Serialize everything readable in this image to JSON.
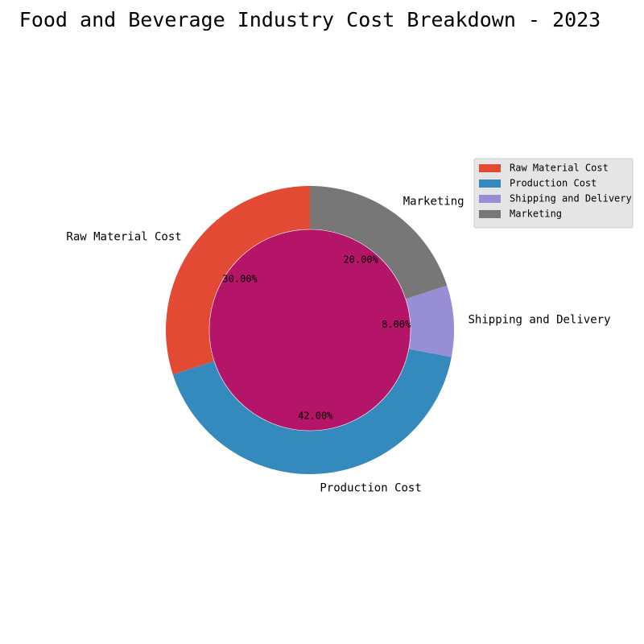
{
  "chart_data": {
    "type": "pie",
    "style": "donut",
    "title": "Food and Beverage Industry Cost Breakdown - 2023",
    "start_angle_deg": 90,
    "direction": "counterclockwise",
    "legend_position": "top-right",
    "center_color": "#b41569",
    "slices": [
      {
        "label": "Raw Material Cost",
        "value": 30,
        "pct_text": "30.00%",
        "color": "#e24a33"
      },
      {
        "label": "Production Cost",
        "value": 42,
        "pct_text": "42.00%",
        "color": "#348abd"
      },
      {
        "label": "Shipping and Delivery",
        "value": 8,
        "pct_text": "8.00%",
        "color": "#988ed5"
      },
      {
        "label": "Marketing",
        "value": 20,
        "pct_text": "20.00%",
        "color": "#777777"
      }
    ]
  }
}
